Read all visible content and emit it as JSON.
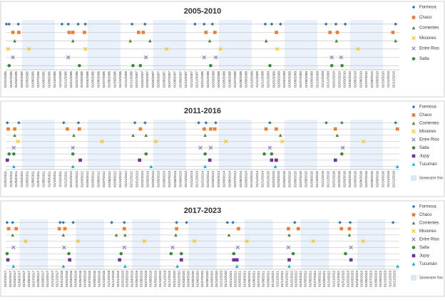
{
  "chart_data": [
    {
      "type": "timeline",
      "title": "2005-2010",
      "xlim": [
        "01/01/2005",
        "31/12/2010"
      ],
      "shade_months": [
        4,
        9
      ],
      "xticks": [
        "01/01/2005",
        "01/02/2005",
        "01/03/2005",
        "01/04/2005",
        "01/05/2005",
        "01/06/2005",
        "01/07/2005",
        "01/08/2005",
        "01/09/2005",
        "01/10/2005",
        "01/11/2005",
        "01/12/2005",
        "01/01/2006",
        "01/02/2006",
        "01/03/2006",
        "01/04/2006",
        "01/05/2006",
        "01/06/2006",
        "01/07/2006",
        "01/08/2006",
        "01/09/2006",
        "01/10/2006",
        "01/11/2006",
        "01/12/2006",
        "01/01/2007",
        "01/02/2007",
        "01/03/2007",
        "01/04/2007",
        "01/05/2007",
        "01/06/2007",
        "01/07/2007",
        "01/08/2007",
        "01/09/2007",
        "01/10/2007",
        "01/11/2007",
        "01/12/2007",
        "01/01/2008",
        "01/02/2008",
        "01/03/2008",
        "01/04/2008",
        "01/05/2008",
        "01/06/2008",
        "01/07/2008",
        "01/08/2008",
        "01/09/2008",
        "01/10/2008",
        "01/11/2008",
        "01/12/2008",
        "01/01/2009",
        "01/02/2009",
        "01/03/2009",
        "01/04/2009",
        "01/05/2009",
        "01/06/2009",
        "01/07/2009",
        "01/08/2009",
        "01/09/2009",
        "01/10/2009",
        "01/11/2009",
        "01/12/2009",
        "01/01/2010",
        "01/02/2010",
        "01/03/2010",
        "01/04/2010",
        "01/05/2010",
        "01/06/2010",
        "01/07/2010",
        "01/08/2010",
        "01/09/2010",
        "01/10/2010",
        "01/11/2010",
        "01/12/2010"
      ],
      "series": [
        {
          "name": "Formosa",
          "color": "#2e75b6",
          "marker": "diamond",
          "x": [
            "05/01/2005",
            "20/01/2005",
            "12/03/2005",
            "10/11/2005",
            "15/12/2005",
            "08/02/2006",
            "20/03/2006",
            "05/12/2006",
            "15/02/2007",
            "20/11/2007",
            "10/01/2008",
            "25/02/2008",
            "15/12/2008",
            "20/01/2009",
            "10/03/2009",
            "18/11/2009",
            "12/01/2010",
            "05/03/2010",
            "10/12/2010"
          ]
        },
        {
          "name": "Chaco",
          "color": "#ed7d31",
          "marker": "square",
          "x": [
            "10/02/2005",
            "15/03/2005",
            "20/12/2005",
            "10/01/2006",
            "15/03/2006",
            "10/01/2007",
            "05/02/2007",
            "20/01/2008",
            "10/03/2008",
            "15/02/2009",
            "10/12/2009",
            "20/01/2010",
            "25/11/2010"
          ]
        },
        {
          "name": "Corrientes",
          "color": "#548235",
          "marker": "triangle",
          "x": [
            "20/02/2005",
            "10/01/2006",
            "25/11/2006",
            "15/03/2007",
            "10/02/2008",
            "20/12/2008",
            "15/01/2010",
            "10/12/2010"
          ]
        },
        {
          "name": "Misiones",
          "color": "#ffc000",
          "marker": "x",
          "x": [
            "15/01/2005",
            "10/05/2005",
            "20/03/2006",
            "15/06/2007",
            "10/04/2008",
            "20/02/2009",
            "15/05/2010"
          ]
        },
        {
          "name": "Entre Rios",
          "color": "#7f7fbf",
          "marker": "x",
          "x": [
            "10/02/2005",
            "15/12/2005",
            "20/02/2007",
            "10/01/2008",
            "15/03/2008",
            "20/12/2009",
            "10/02/2010"
          ]
        },
        {
          "name": "Salta",
          "color": "#3a8a3a",
          "marker": "circle",
          "x": [
            "20/01/2005",
            "15/02/2006",
            "10/12/2006",
            "20/01/2007",
            "15/02/2008",
            "10/01/2009",
            "20/12/2009",
            "15/02/2010"
          ]
        }
      ]
    },
    {
      "type": "timeline",
      "title": "2011-2016",
      "xlim": [
        "01/01/2011",
        "31/12/2016"
      ],
      "shade_months": [
        4,
        9
      ],
      "shade_label": "Semestre frío",
      "xticks": [
        "01/01/2011",
        "01/02/2011",
        "01/03/2011",
        "01/04/2011",
        "01/05/2011",
        "01/06/2011",
        "01/07/2011",
        "01/08/2011",
        "01/09/2011",
        "01/10/2011",
        "01/11/2011",
        "01/12/2011",
        "01/01/2012",
        "01/02/2012",
        "01/03/2012",
        "01/04/2012",
        "01/05/2012",
        "01/06/2012",
        "01/07/2012",
        "01/08/2012",
        "01/09/2012",
        "01/10/2012",
        "01/11/2012",
        "01/12/2012",
        "01/01/2013",
        "01/02/2013",
        "01/03/2013",
        "01/04/2013",
        "01/05/2013",
        "01/06/2013",
        "01/07/2013",
        "01/08/2013",
        "01/09/2013",
        "01/10/2013",
        "01/11/2013",
        "01/12/2013",
        "01/01/2014",
        "01/02/2014",
        "01/03/2014",
        "01/04/2014",
        "01/05/2014",
        "01/06/2014",
        "01/07/2014",
        "01/08/2014",
        "01/09/2014",
        "01/10/2014",
        "01/11/2014",
        "01/12/2014",
        "01/01/2015",
        "01/02/2015",
        "01/03/2015",
        "01/04/2015",
        "01/05/2015",
        "01/06/2015",
        "01/07/2015",
        "01/08/2015",
        "01/09/2015",
        "01/10/2015",
        "01/11/2015",
        "01/12/2015",
        "01/01/2016",
        "01/02/2016",
        "01/03/2016",
        "01/04/2016",
        "01/05/2016",
        "01/06/2016",
        "01/07/2016",
        "01/08/2016",
        "01/09/2016",
        "01/10/2016",
        "01/11/2016",
        "01/12/2016"
      ],
      "series": [
        {
          "name": "Formosa",
          "color": "#2e75b6",
          "marker": "diamond",
          "x": [
            "10/01/2011",
            "15/03/2011",
            "20/11/2011",
            "10/02/2012",
            "20/12/2012",
            "15/02/2013",
            "10/12/2013",
            "20/01/2014",
            "15/03/2014",
            "10/01/2015",
            "20/11/2015",
            "15/02/2016",
            "10/12/2016"
          ]
        },
        {
          "name": "Chaco",
          "color": "#ed7d31",
          "marker": "square",
          "x": [
            "15/01/2011",
            "20/02/2011",
            "10/12/2011",
            "15/02/2012",
            "20/01/2013",
            "10/01/2014",
            "15/02/2014",
            "10/03/2014",
            "20/12/2014",
            "15/02/2015",
            "10/01/2016",
            "20/12/2016"
          ]
        },
        {
          "name": "Corrientes",
          "color": "#548235",
          "marker": "triangle",
          "x": [
            "20/02/2011",
            "15/01/2012",
            "10/12/2012",
            "20/02/2013",
            "15/01/2014",
            "10/03/2015",
            "20/01/2016"
          ]
        },
        {
          "name": "Misiones",
          "color": "#ffc000",
          "marker": "x",
          "x": [
            "10/03/2011",
            "20/06/2012",
            "15/04/2013",
            "10/05/2014",
            "20/03/2015",
            "15/06/2016"
          ]
        },
        {
          "name": "Entre Rios",
          "color": "#7f7fbf",
          "marker": "x",
          "x": [
            "15/02/2011",
            "10/01/2012",
            "20/12/2013",
            "15/02/2014",
            "10/01/2015",
            "20/02/2016"
          ]
        },
        {
          "name": "Salta",
          "color": "#3a8a3a",
          "marker": "circle",
          "x": [
            "20/01/2011",
            "15/02/2011",
            "10/01/2012",
            "20/02/2013",
            "15/01/2014",
            "10/12/2014",
            "20/01/2015",
            "15/02/2016"
          ]
        },
        {
          "name": "Jujuy",
          "color": "#7030a0",
          "marker": "square",
          "x": [
            "10/01/2011",
            "20/02/2012",
            "15/01/2013",
            "10/02/2014",
            "20/01/2015",
            "15/02/2015",
            "10/01/2016"
          ]
        },
        {
          "name": "Tucumán",
          "color": "#00b0f0",
          "marker": "triangle",
          "x": [
            "15/02/2011",
            "10/01/2012",
            "20/03/2013",
            "15/01/2014",
            "10/02/2015",
            "20/12/2016"
          ]
        }
      ]
    },
    {
      "type": "timeline",
      "title": "2017-2023",
      "xlim": [
        "01/01/2017",
        "31/12/2023"
      ],
      "shade_months": [
        4,
        9
      ],
      "shade_label": "Semestre frío",
      "xticks": [
        "01/01/2017",
        "01/02/2017",
        "01/03/2017",
        "01/04/2017",
        "01/05/2017",
        "01/06/2017",
        "01/07/2017",
        "01/08/2017",
        "01/09/2017",
        "01/10/2017",
        "01/11/2017",
        "01/12/2017",
        "01/01/2018",
        "01/02/2018",
        "01/03/2018",
        "01/04/2018",
        "01/05/2018",
        "01/06/2018",
        "01/07/2018",
        "01/08/2018",
        "01/09/2018",
        "01/10/2018",
        "01/11/2018",
        "01/12/2018",
        "01/01/2019",
        "01/02/2019",
        "01/03/2019",
        "01/04/2019",
        "01/05/2019",
        "01/06/2019",
        "01/07/2019",
        "01/08/2019",
        "01/09/2019",
        "01/10/2019",
        "01/11/2019",
        "01/12/2019",
        "01/01/2020",
        "01/02/2020",
        "01/03/2020",
        "01/04/2020",
        "01/05/2020",
        "01/06/2020",
        "01/07/2020",
        "01/08/2020",
        "01/09/2020",
        "01/10/2020",
        "01/11/2020",
        "01/12/2020",
        "01/01/2021",
        "01/02/2021",
        "01/03/2021",
        "01/04/2021",
        "01/05/2021",
        "01/06/2021",
        "01/07/2021",
        "01/08/2021",
        "01/09/2021",
        "01/10/2021",
        "01/11/2021",
        "01/12/2021",
        "01/01/2022",
        "01/02/2022",
        "01/03/2022",
        "01/04/2022",
        "01/05/2022",
        "01/06/2022",
        "01/07/2022",
        "01/08/2022",
        "01/09/2022",
        "01/10/2022",
        "01/11/2022",
        "01/12/2022",
        "01/01/2023",
        "01/02/2023",
        "01/03/2023",
        "01/04/2023",
        "01/05/2023",
        "01/06/2023",
        "01/07/2023",
        "01/08/2023",
        "01/09/2023",
        "01/10/2023",
        "01/11/2023",
        "01/12/2023"
      ],
      "series": [
        {
          "name": "Formosa",
          "color": "#2e75b6",
          "marker": "diamond",
          "x": [
            "10/01/2017",
            "15/02/2017",
            "20/12/2017",
            "10/01/2018",
            "15/03/2018",
            "20/11/2018",
            "10/02/2019",
            "15/01/2020",
            "20/03/2020",
            "10/12/2020",
            "15/01/2021",
            "20/02/2022",
            "10/12/2022",
            "15/02/2023",
            "20/11/2023"
          ]
        },
        {
          "name": "Chaco",
          "color": "#ed7d31",
          "marker": "square",
          "x": [
            "20/01/2017",
            "10/03/2017",
            "15/12/2017",
            "20/01/2018",
            "10/02/2019",
            "15/01/2020",
            "20/02/2021",
            "10/01/2022",
            "15/03/2022",
            "20/12/2022",
            "10/02/2023"
          ]
        },
        {
          "name": "Corrientes",
          "color": "#548235",
          "marker": "triangle",
          "x": [
            "15/02/2017",
            "10/01/2018",
            "20/12/2018",
            "15/02/2019",
            "10/01/2020",
            "20/12/2020",
            "15/01/2022",
            "10/02/2023"
          ]
        },
        {
          "name": "Misiones",
          "color": "#ffc000",
          "marker": "x",
          "x": [
            "10/05/2017",
            "15/04/2018",
            "20/06/2019",
            "10/05/2020",
            "15/04/2021",
            "20/06/2022",
            "10/05/2023"
          ]
        },
        {
          "name": "Entre Rios",
          "color": "#7f7fbf",
          "marker": "x",
          "x": [
            "20/02/2017",
            "15/01/2018",
            "10/02/2019",
            "20/12/2019",
            "15/02/2021",
            "10/01/2022",
            "20/02/2023"
          ]
        },
        {
          "name": "Salta",
          "color": "#3a8a3a",
          "marker": "circle",
          "x": [
            "10/01/2017",
            "15/02/2018",
            "20/01/2019",
            "10/12/2019",
            "15/02/2020",
            "20/01/2021",
            "10/02/2022",
            "15/01/2023"
          ]
        },
        {
          "name": "Jujuy",
          "color": "#7030a0",
          "marker": "square",
          "x": [
            "15/01/2017",
            "20/02/2018",
            "10/01/2019",
            "15/02/2020",
            "20/01/2021",
            "10/02/2021",
            "15/01/2022",
            "20/02/2023"
          ]
        },
        {
          "name": "Tucumán",
          "color": "#00b0f0",
          "marker": "triangle",
          "x": [
            "20/02/2017",
            "10/01/2018",
            "15/02/2019",
            "20/01/2020",
            "10/02/2021",
            "15/01/2022",
            "20/12/2023"
          ]
        }
      ]
    }
  ]
}
